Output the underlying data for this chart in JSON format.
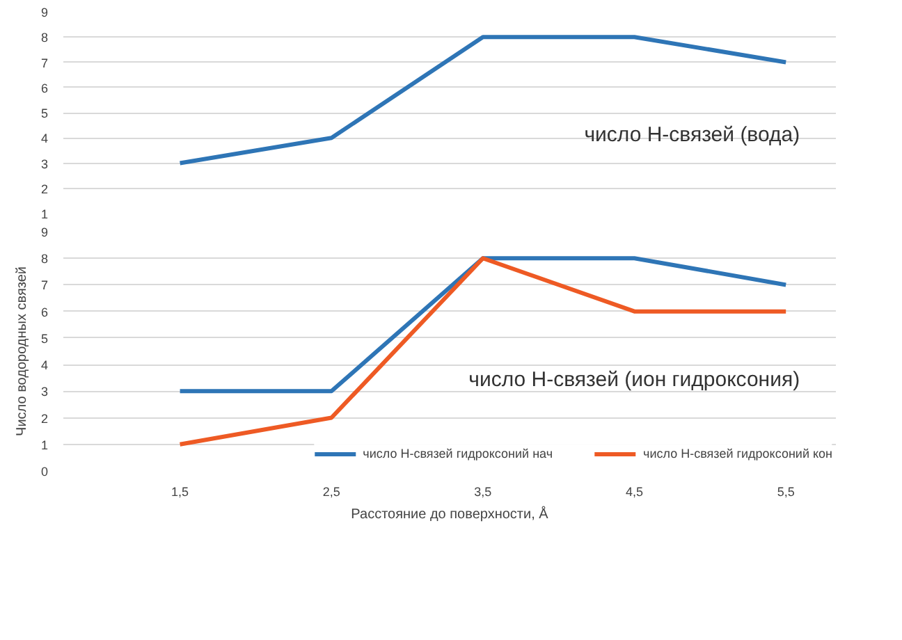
{
  "chart_data": [
    {
      "type": "line",
      "categories": [
        "1,5",
        "2,5",
        "3,5",
        "4,5",
        "5,5"
      ],
      "ylim": [
        1,
        9
      ],
      "yticks": [
        1,
        2,
        3,
        4,
        5,
        6,
        7,
        8,
        9
      ],
      "grid": "y",
      "tick_labels": "y",
      "line_style": "solid",
      "marker": "none",
      "annotations": [
        "число H-связей (вода)"
      ],
      "series": [
        {
          "color": "#2e75b6",
          "values": [
            3,
            4,
            8,
            8,
            7
          ]
        }
      ]
    },
    {
      "type": "line",
      "categories": [
        "1,5",
        "2,5",
        "3,5",
        "4,5",
        "5,5"
      ],
      "ylim": [
        0,
        9
      ],
      "yticks": [
        0,
        1,
        2,
        3,
        4,
        5,
        6,
        7,
        8,
        9
      ],
      "grid": "y",
      "line_style": "solid",
      "marker": "none",
      "legend": "bottom",
      "xlabel": "Расстояние до поверхности, Å",
      "ylabel": "Число водородных связей",
      "annotations": [
        "число H-связей (ион гидроксония)"
      ],
      "series": [
        {
          "name": "число H-связей гидроксоний нач",
          "color": "#2e75b6",
          "values": [
            3,
            3,
            8,
            8,
            7
          ]
        },
        {
          "name": "число H-связей гидроксоний кон",
          "color": "#ee5a24",
          "values": [
            1,
            2,
            8,
            6,
            6
          ]
        }
      ]
    }
  ]
}
